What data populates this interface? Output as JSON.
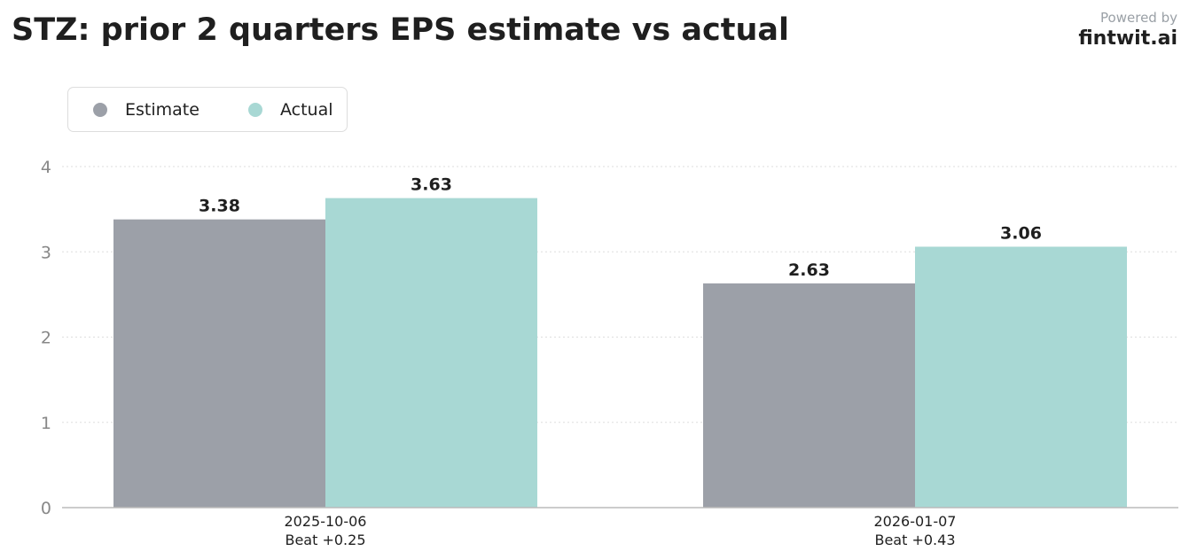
{
  "header": {
    "title": "STZ: prior 2 quarters EPS estimate vs actual",
    "powered_by": "Powered by",
    "brand": "fintwit.ai"
  },
  "colors": {
    "estimate": "#9ca0a8",
    "actual": "#a8d8d4",
    "text": "#1f1f1f",
    "tick": "#888888",
    "grid": "#dddddd",
    "axis": "#bbbbbb"
  },
  "chart_data": {
    "type": "bar",
    "title": "STZ: prior 2 quarters EPS estimate vs actual",
    "xlabel": "",
    "ylabel": "",
    "categories": [
      "2025-10-06",
      "2026-01-07"
    ],
    "category_notes": [
      "Beat +0.25",
      "Beat +0.43"
    ],
    "series": [
      {
        "name": "Estimate",
        "values": [
          3.38,
          2.63
        ]
      },
      {
        "name": "Actual",
        "values": [
          3.63,
          3.06
        ]
      }
    ],
    "value_labels": [
      [
        "3.38",
        "2.63"
      ],
      [
        "3.63",
        "3.06"
      ]
    ],
    "ylim": [
      0,
      4
    ],
    "yticks": [
      0,
      1,
      2,
      3,
      4
    ],
    "grid": true,
    "legend_position": "top-left"
  }
}
